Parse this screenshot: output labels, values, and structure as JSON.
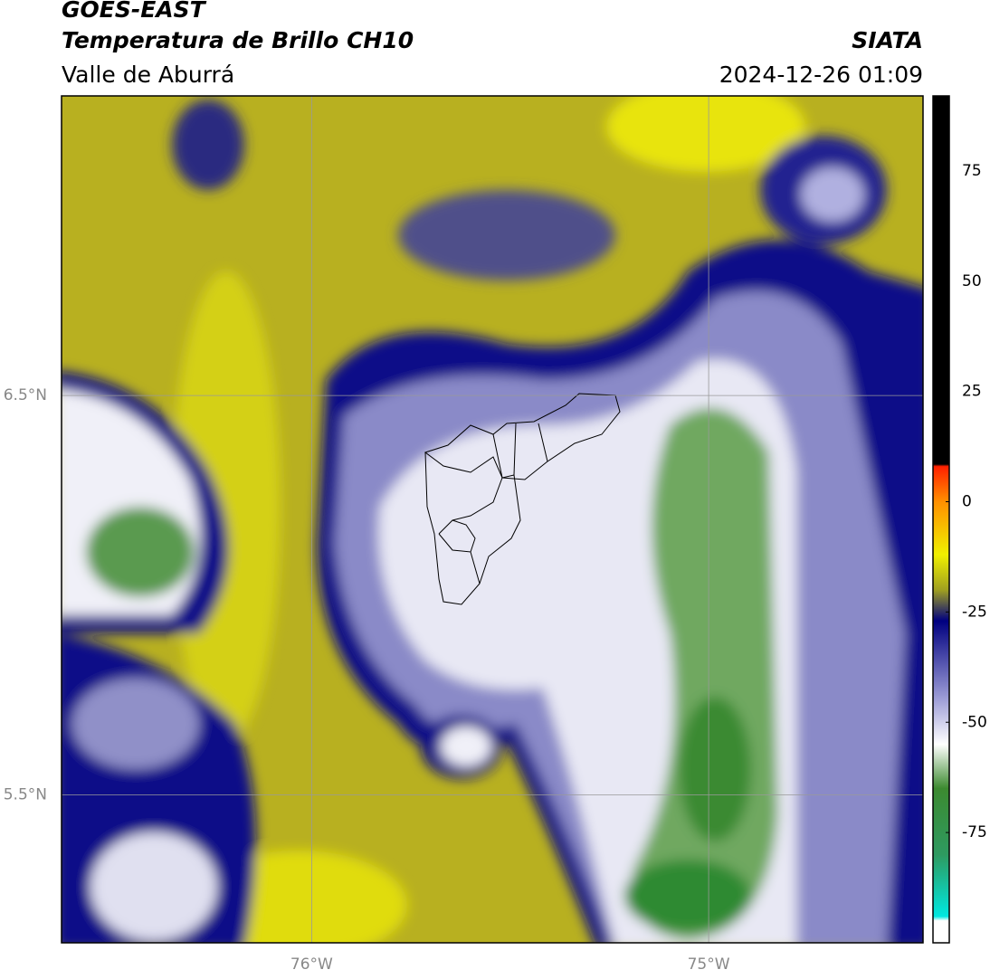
{
  "header": {
    "title": "GOES-EAST",
    "subtitle": "Temperatura de Brillo CH10",
    "region": "Valle de Aburrá",
    "source": "SIATA",
    "datetime": "2024-12-26 01:09"
  },
  "map": {
    "xlim": [
      -76.63,
      -74.46
    ],
    "ylim": [
      5.13,
      7.25
    ],
    "xticks": [
      {
        "value": -76,
        "label": "76°W"
      },
      {
        "value": -75,
        "label": "75°W"
      }
    ],
    "yticks": [
      {
        "value": 6.5,
        "label": "6.5°N"
      },
      {
        "value": 5.5,
        "label": "5.5°N"
      }
    ],
    "grid": true
  },
  "colorbar": {
    "lim": [
      -100,
      92
    ],
    "ticks": [
      75,
      50,
      25,
      0,
      -25,
      -50,
      -75
    ],
    "stops": [
      {
        "value": -100,
        "color": "#ffffff"
      },
      {
        "value": -95,
        "color": "#ffffff"
      },
      {
        "value": -94,
        "color": "#00e8e0"
      },
      {
        "value": -80,
        "color": "#2e9a60"
      },
      {
        "value": -65,
        "color": "#3c8a30"
      },
      {
        "value": -55,
        "color": "#ffffff"
      },
      {
        "value": -45,
        "color": "#a0a0d8"
      },
      {
        "value": -27,
        "color": "#000080"
      },
      {
        "value": -20,
        "color": "#a0a020"
      },
      {
        "value": -12,
        "color": "#f0f000"
      },
      {
        "value": 0,
        "color": "#ff9000"
      },
      {
        "value": 8,
        "color": "#ff2000"
      },
      {
        "value": 8.5,
        "color": "#000000"
      },
      {
        "value": 92,
        "color": "#000000"
      }
    ]
  }
}
